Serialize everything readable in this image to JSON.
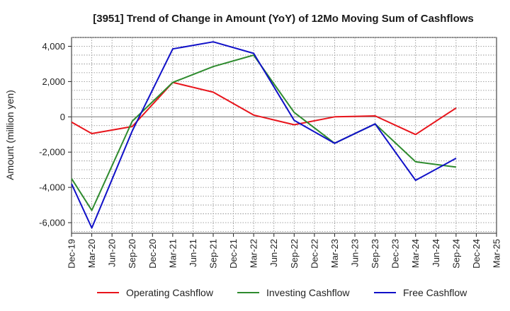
{
  "chart_data": {
    "type": "line",
    "title": "[3951]  Trend of Change in Amount (YoY) of 12Mo Moving Sum of Cashflows",
    "xlabel": "",
    "ylabel": "Amount (million yen)",
    "ylim": [
      -6600,
      4500
    ],
    "yticks": [
      4000,
      2000,
      0,
      -2000,
      -4000,
      -6000
    ],
    "ytick_labels": [
      "4,000",
      "2,000",
      "0",
      "-2,000",
      "-4,000",
      "-6,000"
    ],
    "categories": [
      "Dec-19",
      "Mar-20",
      "Jun-20",
      "Sep-20",
      "Dec-20",
      "Mar-21",
      "Jun-21",
      "Sep-21",
      "Dec-21",
      "Mar-22",
      "Jun-22",
      "Sep-22",
      "Dec-22",
      "Mar-23",
      "Jun-23",
      "Sep-23",
      "Dec-23",
      "Mar-24",
      "Jun-24",
      "Sep-24",
      "Dec-24",
      "Mar-25"
    ],
    "grid": true,
    "legend_position": "bottom",
    "series": [
      {
        "name": "Operating Cashflow",
        "color": "#e8141b",
        "values": [
          -300,
          -950,
          null,
          -550,
          null,
          1950,
          null,
          1400,
          null,
          100,
          null,
          -450,
          null,
          0,
          null,
          50,
          null,
          -1000,
          null,
          500,
          null,
          null
        ]
      },
      {
        "name": "Investing Cashflow",
        "color": "#2e8b2e",
        "values": [
          -3500,
          -5300,
          null,
          -250,
          null,
          1950,
          null,
          2850,
          null,
          3500,
          null,
          250,
          null,
          -1500,
          null,
          -400,
          null,
          -2550,
          null,
          -2850,
          null,
          null
        ]
      },
      {
        "name": "Free Cashflow",
        "color": "#1010c8",
        "values": [
          -3800,
          -6300,
          null,
          -800,
          null,
          3850,
          null,
          4250,
          null,
          3600,
          null,
          -200,
          null,
          -1500,
          null,
          -400,
          null,
          -3600,
          null,
          -2350,
          null,
          null
        ]
      }
    ]
  }
}
